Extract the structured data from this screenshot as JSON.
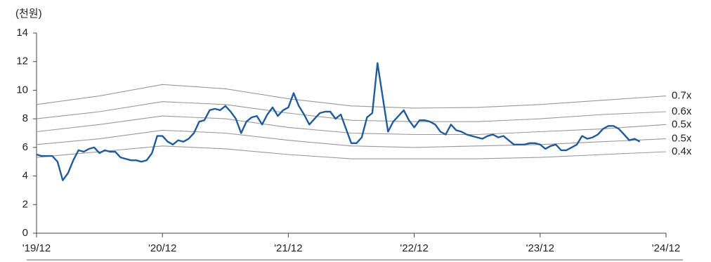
{
  "chart_data": {
    "type": "line",
    "y_label": "(천원)",
    "xlim": [
      0,
      60
    ],
    "ylim": [
      0,
      14
    ],
    "yticks": [
      0,
      2,
      4,
      6,
      8,
      10,
      12,
      14
    ],
    "xticks": [
      {
        "value": 0,
        "label": "'19/12"
      },
      {
        "value": 12,
        "label": "'20/12"
      },
      {
        "value": 24,
        "label": "'21/12"
      },
      {
        "value": 36,
        "label": "'22/12"
      },
      {
        "value": 48,
        "label": "'23/12"
      },
      {
        "value": 60,
        "label": "'24/12"
      }
    ],
    "series": [
      {
        "color": "#1f5c99",
        "x": [
          0,
          0.5,
          1,
          1.5,
          2,
          2.5,
          3,
          3.5,
          4,
          4.5,
          5,
          5.5,
          6,
          6.5,
          7,
          7.5,
          8,
          8.5,
          9,
          9.5,
          10,
          10.5,
          11,
          11.5,
          12,
          12.5,
          13,
          13.5,
          14,
          14.5,
          15,
          15.5,
          16,
          16.5,
          17,
          17.5,
          18,
          18.5,
          19,
          19.5,
          20,
          20.5,
          21,
          21.5,
          22,
          22.5,
          23,
          23.5,
          24,
          24.5,
          25,
          25.5,
          26,
          26.5,
          27,
          27.5,
          28,
          28.5,
          29,
          29.5,
          30,
          30.5,
          31,
          31.5,
          32,
          32.5,
          33,
          33.5,
          34,
          34.5,
          35,
          35.5,
          36,
          36.5,
          37,
          37.5,
          38,
          38.5,
          39,
          39.5,
          40,
          40.5,
          41,
          41.5,
          42,
          42.5,
          43,
          43.5,
          44,
          44.5,
          45,
          45.5,
          46,
          46.5,
          47,
          47.5,
          48,
          48.5,
          49,
          49.5,
          50,
          50.5,
          51,
          51.5,
          52,
          52.5,
          53,
          53.5,
          54,
          54.5,
          55,
          55.5,
          56,
          56.5,
          57,
          57.5
        ],
        "values": [
          5.5,
          5.4,
          5.4,
          5.4,
          5.0,
          3.7,
          4.2,
          5.1,
          5.8,
          5.7,
          5.9,
          6.0,
          5.6,
          5.8,
          5.7,
          5.7,
          5.3,
          5.2,
          5.1,
          5.1,
          5.0,
          5.1,
          5.6,
          6.8,
          6.8,
          6.4,
          6.2,
          6.5,
          6.4,
          6.6,
          7.0,
          7.8,
          7.9,
          8.6,
          8.7,
          8.6,
          8.9,
          8.5,
          8.0,
          7.0,
          7.8,
          8.1,
          8.2,
          7.6,
          8.3,
          8.8,
          8.2,
          8.6,
          8.8,
          9.8,
          8.9,
          8.3,
          7.6,
          8.0,
          8.4,
          8.5,
          8.5,
          8.0,
          8.3,
          7.3,
          6.3,
          6.3,
          6.7,
          8.1,
          8.4,
          11.9,
          9.5,
          7.1,
          7.8,
          8.2,
          8.6,
          7.9,
          7.4,
          7.9,
          7.9,
          7.8,
          7.6,
          7.1,
          6.9,
          7.6,
          7.2,
          7.1,
          6.9,
          6.8,
          6.7,
          6.6,
          6.8,
          6.9,
          6.7,
          6.8,
          6.5,
          6.2,
          6.2,
          6.2,
          6.3,
          6.3,
          6.2,
          5.9,
          6.1,
          6.2,
          5.8,
          5.8,
          6.0,
          6.2,
          6.8,
          6.6,
          6.7,
          6.9,
          7.3,
          7.5,
          7.5,
          7.3,
          6.9,
          6.5,
          6.6,
          6.4
        ]
      },
      {
        "name": "0.7x",
        "color": "#999999",
        "x": [
          0,
          6,
          12,
          18,
          24,
          30,
          36,
          42,
          48,
          54,
          60
        ],
        "values": [
          9.0,
          9.6,
          10.4,
          10.1,
          9.4,
          8.9,
          8.75,
          8.8,
          9.0,
          9.3,
          9.6
        ]
      },
      {
        "name": "0.6x",
        "color": "#999999",
        "x": [
          0,
          6,
          12,
          18,
          24,
          30,
          36,
          42,
          48,
          54,
          60
        ],
        "values": [
          8.0,
          8.5,
          9.2,
          9.0,
          8.4,
          7.9,
          7.8,
          7.8,
          8.0,
          8.3,
          8.5
        ]
      },
      {
        "name": "0.5x",
        "color": "#999999",
        "x": [
          0,
          6,
          12,
          18,
          24,
          30,
          36,
          42,
          48,
          54,
          60
        ],
        "values": [
          7.1,
          7.6,
          8.2,
          8.0,
          7.4,
          7.0,
          6.9,
          6.9,
          7.1,
          7.3,
          7.6
        ]
      },
      {
        "name": "0.5x",
        "color": "#999999",
        "x": [
          0,
          6,
          12,
          18,
          24,
          30,
          36,
          42,
          48,
          54,
          60
        ],
        "values": [
          6.2,
          6.6,
          7.2,
          7.0,
          6.5,
          6.1,
          6.0,
          6.1,
          6.2,
          6.4,
          6.6
        ]
      },
      {
        "name": "0.4x",
        "color": "#999999",
        "x": [
          0,
          6,
          12,
          18,
          24,
          30,
          36,
          42,
          48,
          54,
          60
        ],
        "values": [
          5.3,
          5.7,
          6.1,
          5.9,
          5.5,
          5.2,
          5.2,
          5.2,
          5.3,
          5.5,
          5.7
        ]
      }
    ]
  }
}
